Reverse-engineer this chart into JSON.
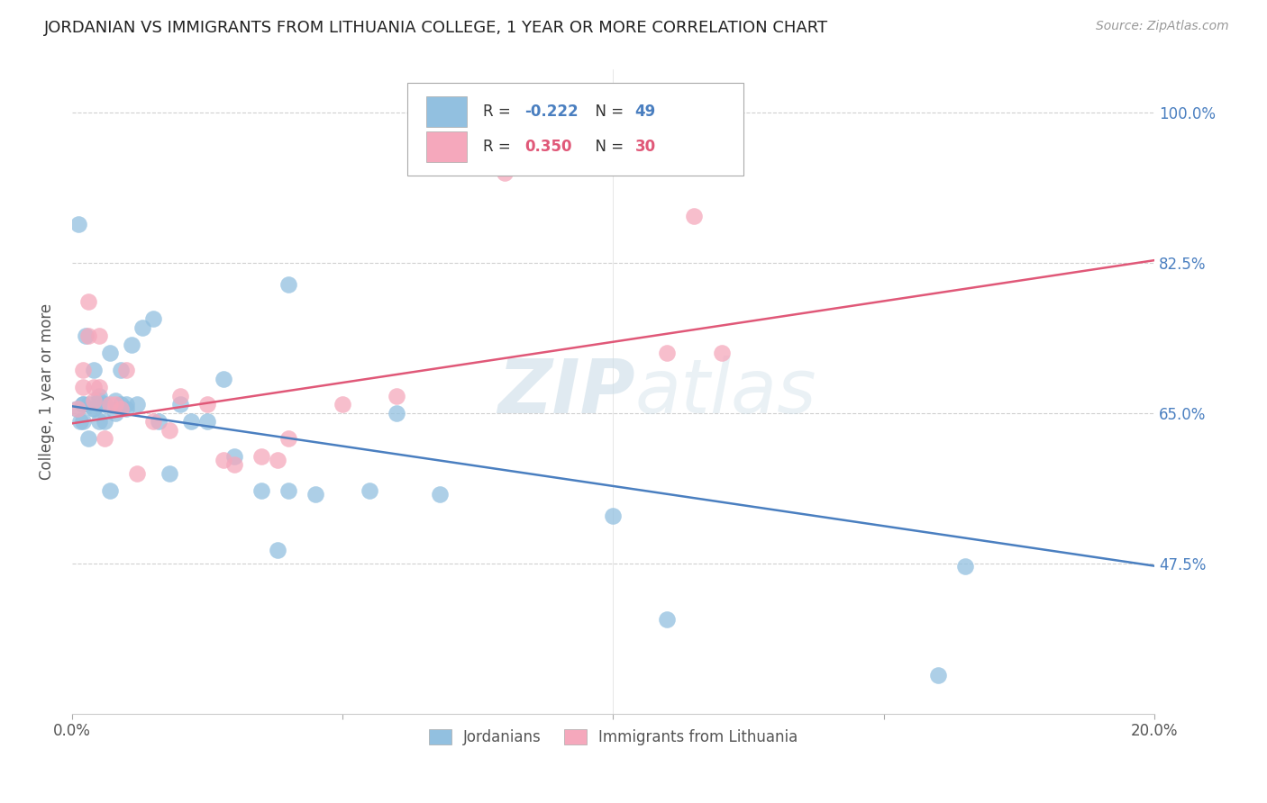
{
  "title": "JORDANIAN VS IMMIGRANTS FROM LITHUANIA COLLEGE, 1 YEAR OR MORE CORRELATION CHART",
  "source": "Source: ZipAtlas.com",
  "ylabel": "College, 1 year or more",
  "xlim": [
    0.0,
    0.2
  ],
  "ylim": [
    0.3,
    1.05
  ],
  "xtick_vals": [
    0.0,
    0.05,
    0.1,
    0.15,
    0.2
  ],
  "xtick_labels": [
    "0.0%",
    "",
    "",
    "",
    "20.0%"
  ],
  "ytick_vals": [
    1.0,
    0.825,
    0.65,
    0.475
  ],
  "ytick_labels": [
    "100.0%",
    "82.5%",
    "65.0%",
    "47.5%"
  ],
  "legend_labels": [
    "Jordanians",
    "Immigrants from Lithuania"
  ],
  "legend_R_blue": "-0.222",
  "legend_N_blue": "49",
  "legend_R_pink": "0.350",
  "legend_N_pink": "30",
  "blue_color": "#92c0e0",
  "pink_color": "#f5a8bc",
  "blue_line_color": "#4a7fc0",
  "pink_line_color": "#e05878",
  "blue_text_color": "#4a7fc0",
  "pink_text_color": "#e05878",
  "watermark_color": "#ccdde8",
  "blue_line_x": [
    0.0,
    0.2
  ],
  "blue_line_y": [
    0.658,
    0.472
  ],
  "pink_line_x": [
    0.0,
    0.2
  ],
  "pink_line_y": [
    0.638,
    0.828
  ],
  "blue_scatter_x": [
    0.0008,
    0.0012,
    0.0015,
    0.002,
    0.002,
    0.002,
    0.0025,
    0.003,
    0.003,
    0.004,
    0.004,
    0.004,
    0.005,
    0.005,
    0.005,
    0.005,
    0.006,
    0.006,
    0.007,
    0.007,
    0.008,
    0.008,
    0.009,
    0.009,
    0.01,
    0.01,
    0.011,
    0.012,
    0.013,
    0.015,
    0.016,
    0.018,
    0.02,
    0.022,
    0.025,
    0.028,
    0.03,
    0.035,
    0.038,
    0.04,
    0.045,
    0.055,
    0.06,
    0.068,
    0.1,
    0.11,
    0.16,
    0.165,
    0.04
  ],
  "blue_scatter_y": [
    0.655,
    0.87,
    0.64,
    0.66,
    0.64,
    0.66,
    0.74,
    0.66,
    0.62,
    0.655,
    0.655,
    0.7,
    0.665,
    0.64,
    0.66,
    0.67,
    0.64,
    0.66,
    0.72,
    0.56,
    0.665,
    0.65,
    0.7,
    0.66,
    0.66,
    0.655,
    0.73,
    0.66,
    0.75,
    0.76,
    0.64,
    0.58,
    0.66,
    0.64,
    0.64,
    0.69,
    0.6,
    0.56,
    0.49,
    0.56,
    0.555,
    0.56,
    0.65,
    0.555,
    0.53,
    0.41,
    0.345,
    0.472,
    0.8
  ],
  "pink_scatter_x": [
    0.001,
    0.002,
    0.002,
    0.003,
    0.003,
    0.004,
    0.004,
    0.005,
    0.005,
    0.006,
    0.007,
    0.008,
    0.009,
    0.01,
    0.012,
    0.015,
    0.018,
    0.02,
    0.025,
    0.028,
    0.03,
    0.035,
    0.038,
    0.04,
    0.05,
    0.06,
    0.08,
    0.11,
    0.12,
    0.115
  ],
  "pink_scatter_y": [
    0.655,
    0.7,
    0.68,
    0.78,
    0.74,
    0.68,
    0.665,
    0.74,
    0.68,
    0.62,
    0.66,
    0.66,
    0.655,
    0.7,
    0.58,
    0.64,
    0.63,
    0.67,
    0.66,
    0.595,
    0.59,
    0.6,
    0.595,
    0.62,
    0.66,
    0.67,
    0.93,
    0.72,
    0.72,
    0.88
  ]
}
